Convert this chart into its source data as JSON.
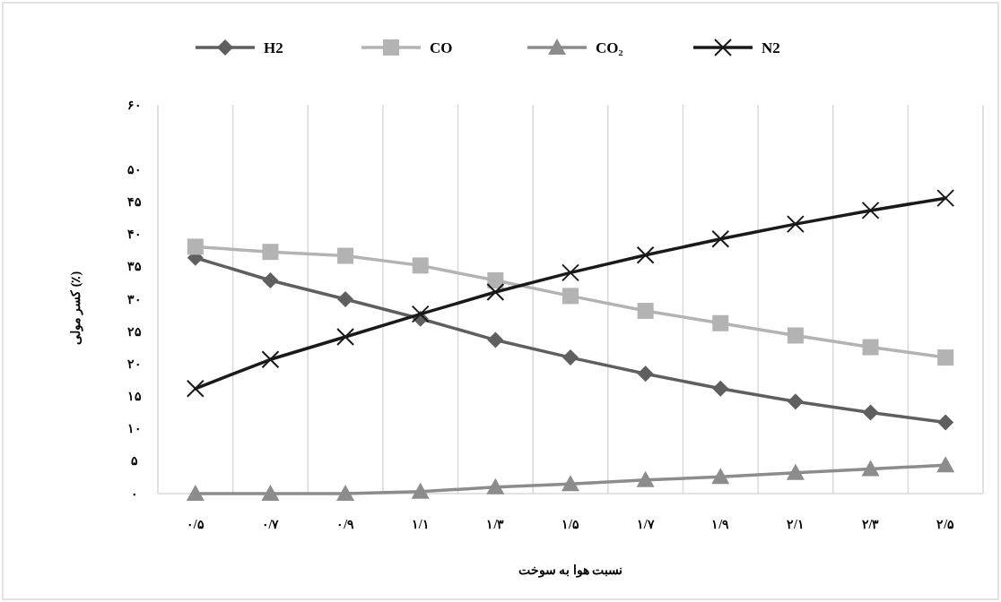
{
  "chart_data": {
    "type": "line",
    "categories": [
      "۰/۵",
      "۰/۷",
      "۰/۹",
      "۱/۱",
      "۱/۳",
      "۱/۵",
      "۱/۷",
      "۱/۹",
      "۲/۱",
      "۲/۳",
      "۲/۵"
    ],
    "series": [
      {
        "name": "H2",
        "color": "#5f5f5f",
        "marker": "diamond",
        "values": [
          36.4,
          32.9,
          30.0,
          27.0,
          23.7,
          21.0,
          18.5,
          16.2,
          14.2,
          12.5,
          11.0
        ]
      },
      {
        "name": "CO",
        "color": "#b3b3b3",
        "marker": "square",
        "values": [
          38.1,
          37.3,
          36.7,
          35.2,
          32.9,
          30.5,
          28.2,
          26.3,
          24.4,
          22.6,
          21.0
        ]
      },
      {
        "name": "CO₂",
        "color": "#8c8c8c",
        "marker": "triangle",
        "values": [
          0,
          0,
          0,
          0.3,
          1.0,
          1.5,
          2.1,
          2.6,
          3.2,
          3.8,
          4.4
        ]
      },
      {
        "name": "N2",
        "color": "#1a1a1a",
        "marker": "cross",
        "values": [
          16.2,
          20.7,
          24.2,
          27.7,
          31.1,
          34.1,
          36.8,
          39.3,
          41.6,
          43.7,
          45.6
        ]
      }
    ],
    "ylim": [
      0,
      60
    ],
    "yticks": [
      {
        "value": 0,
        "label": "۰"
      },
      {
        "value": 5,
        "label": "۵"
      },
      {
        "value": 10,
        "label": "۱۰"
      },
      {
        "value": 15,
        "label": "۱۵"
      },
      {
        "value": 20,
        "label": "۲۰"
      },
      {
        "value": 25,
        "label": "۲۵"
      },
      {
        "value": 30,
        "label": "۳۰"
      },
      {
        "value": 35,
        "label": "۳۵"
      },
      {
        "value": 40,
        "label": "۴۰"
      },
      {
        "value": 45,
        "label": "۴۵"
      },
      {
        "value": 50,
        "label": "۵۰"
      },
      {
        "value": 60,
        "label": "۶۰"
      }
    ],
    "xlabel": "نسبت هوا به سوخت",
    "ylabel": "کسر مولی (٪)",
    "grid": "x",
    "legend": "top"
  }
}
